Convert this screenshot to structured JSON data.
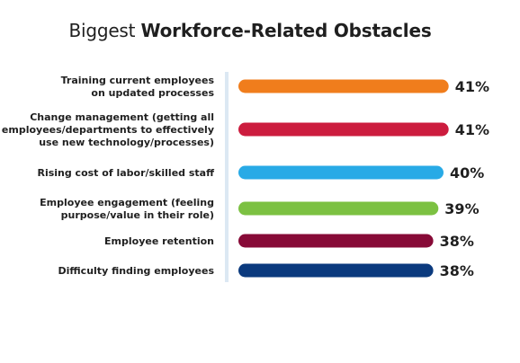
{
  "chart_data": {
    "type": "bar",
    "orientation": "horizontal",
    "title_prefix": "Biggest",
    "title_bold": "Workforce-Related Obstacles",
    "categories": [
      [
        "Training current employees",
        "on updated processes"
      ],
      [
        "Change management (getting all",
        "employees/departments to effectively",
        "use new technology/processes)"
      ],
      [
        "Rising cost of labor/skilled staff"
      ],
      [
        "Employee engagement (feeling",
        "purpose/value in their role)"
      ],
      [
        "Employee retention"
      ],
      [
        "Difficulty finding employees"
      ]
    ],
    "values": [
      41,
      41,
      40,
      39,
      38,
      38
    ],
    "value_labels": [
      "41%",
      "41%",
      "40%",
      "39%",
      "38%",
      "38%"
    ],
    "colors": [
      "#f07d1c",
      "#cc1c3e",
      "#28aae6",
      "#7cc142",
      "#870a37",
      "#0b3a7e"
    ],
    "axis_line_color": "#dce8f3",
    "unit": "%"
  }
}
